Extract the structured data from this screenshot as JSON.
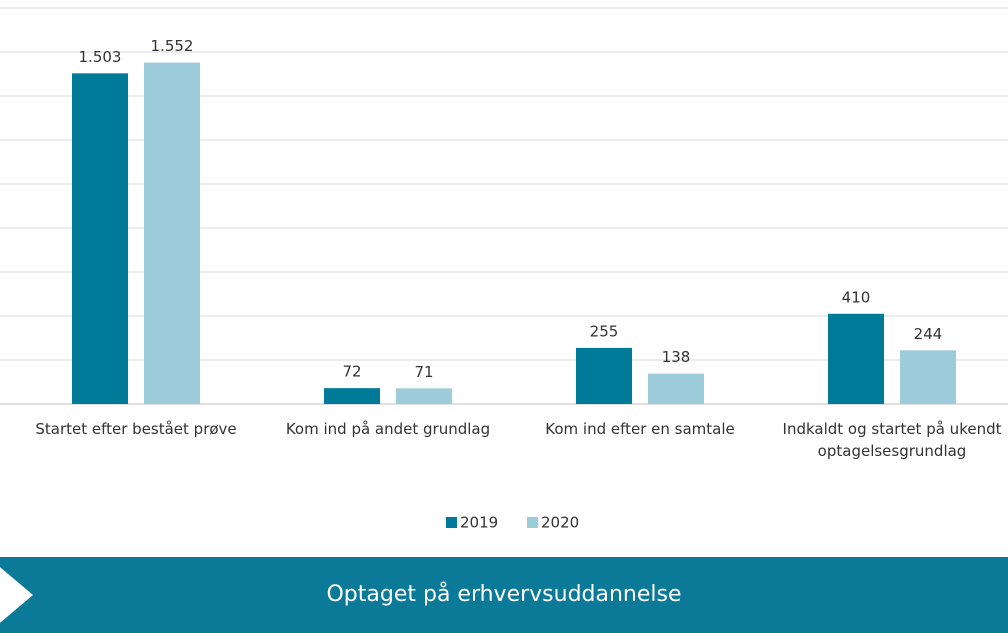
{
  "chart_data": {
    "type": "bar",
    "categories": [
      "Startet efter bestået prøve",
      "Kom ind på andet grundlag",
      "Kom ind efter en samtale",
      "Indkaldt og startet på ukendt optagelsesgrundlag"
    ],
    "series": [
      {
        "name": "2019",
        "color": "#007a99",
        "values": [
          1503,
          72,
          255,
          410
        ],
        "value_labels": [
          "1.503",
          "72",
          "255",
          "410"
        ]
      },
      {
        "name": "2020",
        "color": "#9ccbd9",
        "values": [
          1552,
          71,
          138,
          244
        ],
        "value_labels": [
          "1.552",
          "71",
          "138",
          "244"
        ]
      }
    ],
    "ylim": [
      0,
      1800
    ],
    "yticks": [
      0,
      200,
      400,
      600,
      800,
      1000,
      1200,
      1400,
      1600,
      1800
    ],
    "grid": true
  },
  "banner": {
    "title": "Optaget på erhvervsuddannelse"
  }
}
